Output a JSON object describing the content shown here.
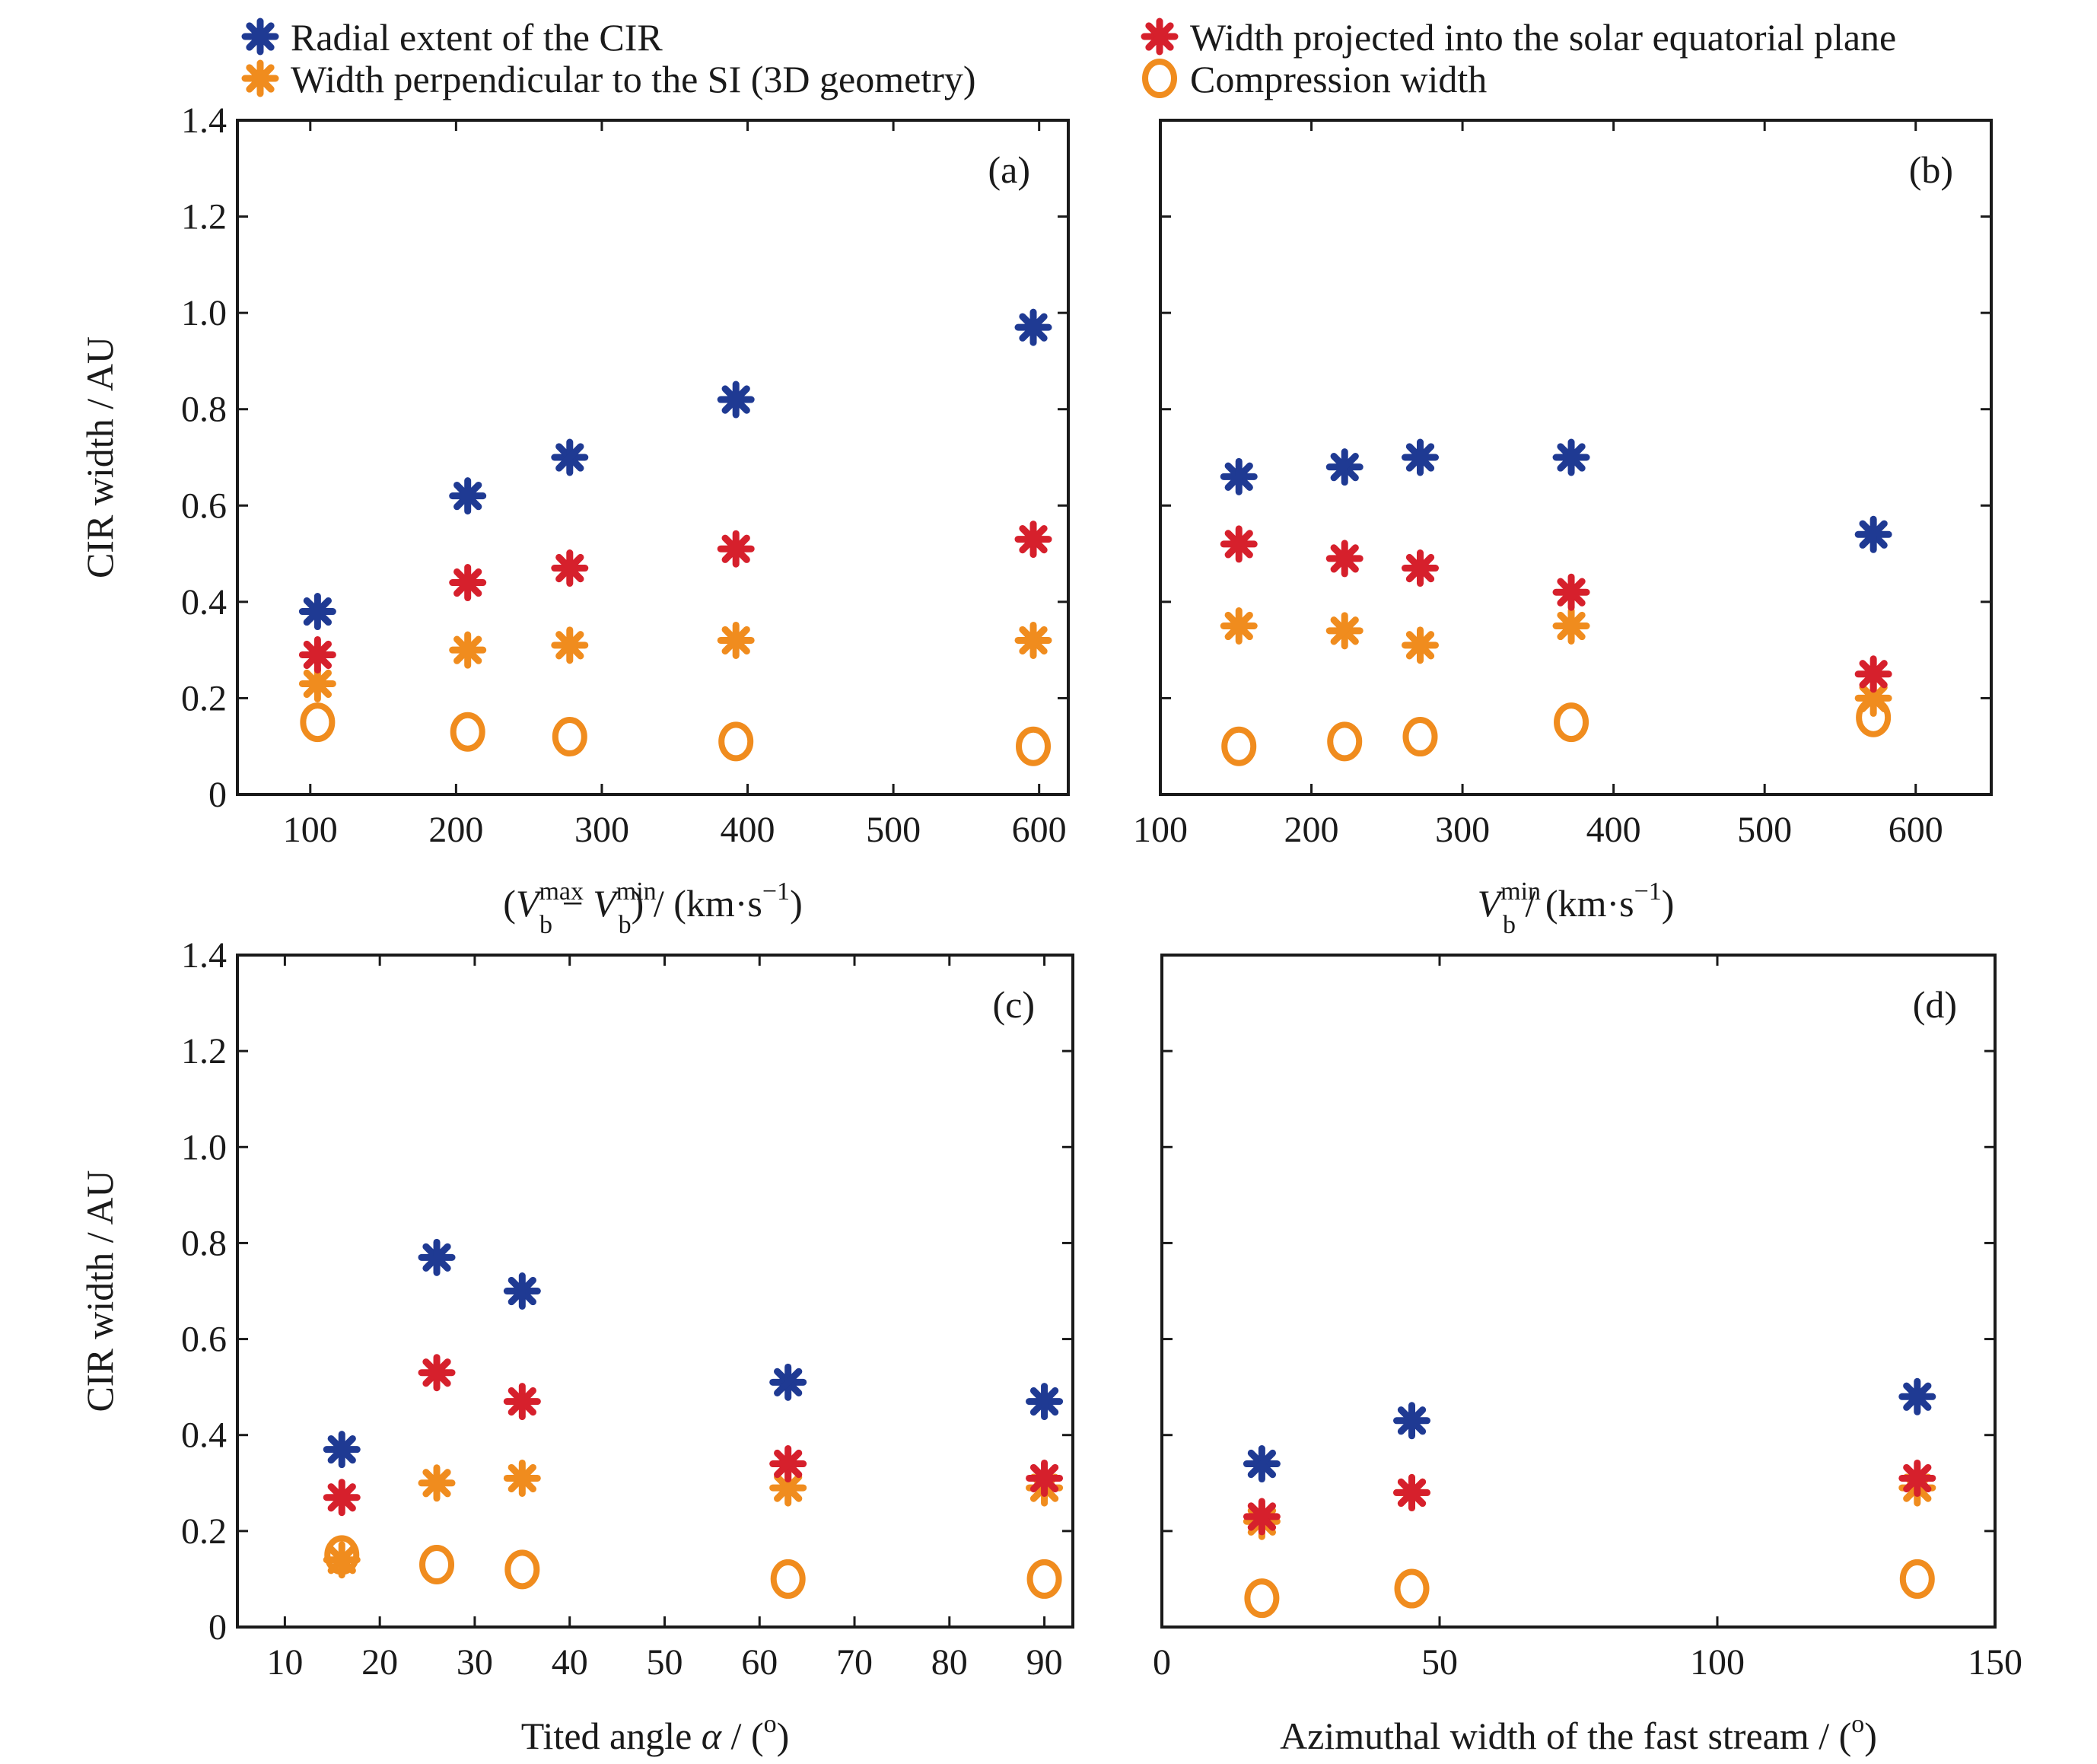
{
  "legend": [
    {
      "label": "Radial extent of the CIR",
      "color": "#1f3a93",
      "marker": "asterisk",
      "series": "radial"
    },
    {
      "label": "Width perpendicular to the SI (3D geometry)",
      "color": "#f08c1e",
      "marker": "asterisk",
      "series": "perp"
    },
    {
      "label": "Width projected into the solar equatorial plane",
      "color": "#d6202c",
      "marker": "asterisk",
      "series": "proj"
    },
    {
      "label": "Compression width",
      "color": "#f08c1e",
      "marker": "circle",
      "series": "comp"
    }
  ],
  "ylabel": "CIR width / AU",
  "chart_data": [
    {
      "type": "scatter",
      "panel_label": "(a)",
      "xlabel_parts": [
        "(",
        "V",
        "max",
        "b",
        " − ",
        "V",
        "min",
        "b",
        ") / (km·s",
        "−1",
        ")"
      ],
      "xlim": [
        50,
        620
      ],
      "xticks": [
        100,
        200,
        300,
        400,
        500,
        600
      ],
      "ylim": [
        0,
        1.4
      ],
      "yticks": [
        "0",
        "0.2",
        "0.4",
        "0.6",
        "0.8",
        "1.0",
        "1.2",
        "1.4"
      ],
      "x": [
        105,
        208,
        278,
        392,
        596
      ],
      "series": [
        {
          "name": "Radial extent of the CIR",
          "key": "radial",
          "values": [
            0.38,
            0.62,
            0.7,
            0.82,
            0.97
          ]
        },
        {
          "name": "Width projected into the solar equatorial plane",
          "key": "proj",
          "values": [
            0.29,
            0.44,
            0.47,
            0.51,
            0.53
          ]
        },
        {
          "name": "Width perpendicular to the SI (3D geometry)",
          "key": "perp",
          "values": [
            0.23,
            0.3,
            0.31,
            0.32,
            0.32
          ]
        },
        {
          "name": "Compression width",
          "key": "comp",
          "values": [
            0.15,
            0.13,
            0.12,
            0.11,
            0.1
          ]
        }
      ]
    },
    {
      "type": "scatter",
      "panel_label": "(b)",
      "xlabel_parts": [
        "V",
        "min",
        "b",
        " / (km·s",
        "−1",
        ")"
      ],
      "xlim": [
        100,
        650
      ],
      "xticks": [
        100,
        200,
        300,
        400,
        500,
        600
      ],
      "ylim": [
        0,
        1.4
      ],
      "yticks": [],
      "x": [
        152,
        222,
        272,
        372,
        572
      ],
      "series": [
        {
          "name": "Radial extent of the CIR",
          "key": "radial",
          "values": [
            0.66,
            0.68,
            0.7,
            0.7,
            0.54
          ]
        },
        {
          "name": "Width projected into the solar equatorial plane",
          "key": "proj",
          "values": [
            0.52,
            0.49,
            0.47,
            0.42,
            0.25
          ]
        },
        {
          "name": "Width perpendicular to the SI (3D geometry)",
          "key": "perp",
          "values": [
            0.35,
            0.34,
            0.31,
            0.35,
            0.2
          ]
        },
        {
          "name": "Compression width",
          "key": "comp",
          "values": [
            0.1,
            0.11,
            0.12,
            0.15,
            0.16
          ]
        }
      ]
    },
    {
      "type": "scatter",
      "panel_label": "(c)",
      "xlabel_parts": [
        "Tited angle ",
        "α",
        " / (",
        "o",
        ")"
      ],
      "xlim": [
        5,
        93
      ],
      "xticks": [
        10,
        20,
        30,
        40,
        50,
        60,
        70,
        80,
        90
      ],
      "ylim": [
        0,
        1.4
      ],
      "yticks": [
        "0",
        "0.2",
        "0.4",
        "0.6",
        "0.8",
        "1.0",
        "1.2",
        "1.4"
      ],
      "x": [
        16,
        26,
        35,
        63,
        90
      ],
      "series": [
        {
          "name": "Radial extent of the CIR",
          "key": "radial",
          "values": [
            0.37,
            0.77,
            0.7,
            0.51,
            0.47
          ]
        },
        {
          "name": "Width projected into the solar equatorial plane",
          "key": "proj",
          "values": [
            0.27,
            0.53,
            0.47,
            0.34,
            0.31
          ]
        },
        {
          "name": "Width perpendicular to the SI (3D geometry)",
          "key": "perp",
          "values": [
            0.14,
            0.3,
            0.31,
            0.29,
            0.29
          ]
        },
        {
          "name": "Compression width",
          "key": "comp",
          "values": [
            0.15,
            0.13,
            0.12,
            0.1,
            0.1
          ]
        }
      ]
    },
    {
      "type": "scatter",
      "panel_label": "(d)",
      "xlabel_parts": [
        "Azimuthal width of the fast stream / (",
        "o",
        ")"
      ],
      "xlim": [
        0,
        150
      ],
      "xticks": [
        0,
        50,
        100,
        150
      ],
      "ylim": [
        0,
        1.4
      ],
      "yticks": [],
      "x": [
        18,
        45,
        136
      ],
      "series": [
        {
          "name": "Radial extent of the CIR",
          "key": "radial",
          "values": [
            0.34,
            0.43,
            0.48
          ]
        },
        {
          "name": "Width projected into the solar equatorial plane",
          "key": "proj",
          "values": [
            0.23,
            0.28,
            0.31
          ]
        },
        {
          "name": "Width perpendicular to the SI (3D geometry)",
          "key": "perp",
          "values": [
            0.22,
            0.28,
            0.29
          ]
        },
        {
          "name": "Compression width",
          "key": "comp",
          "values": [
            0.06,
            0.08,
            0.1
          ]
        }
      ]
    }
  ]
}
